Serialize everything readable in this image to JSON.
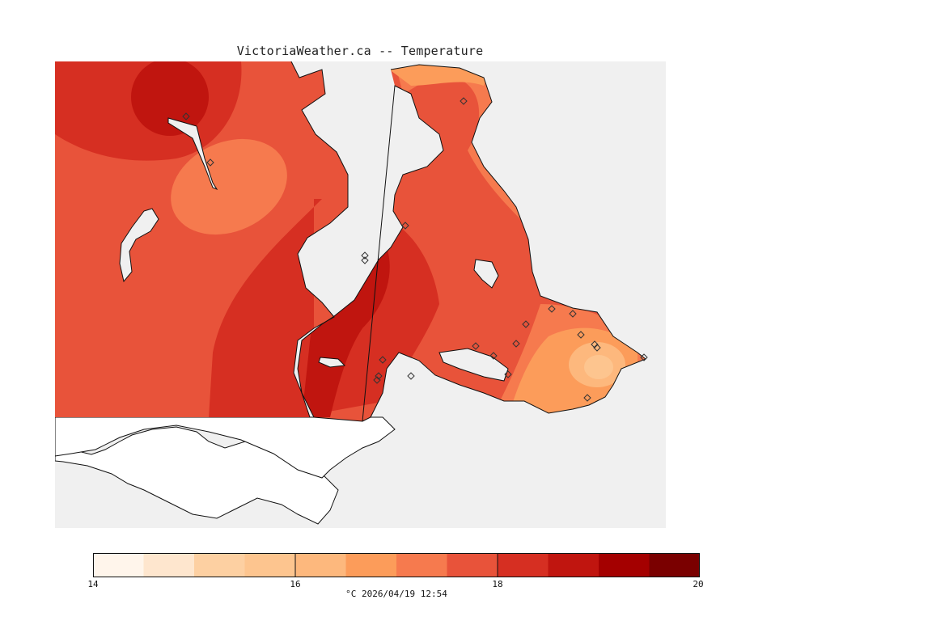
{
  "title": "VictoriaWeather.ca -- Temperature",
  "legend": {
    "colors": [
      "#fff5eb",
      "#fee6ce",
      "#fdd0a2",
      "#fdc58f",
      "#fdb87d",
      "#fc9c5a",
      "#f67a4e",
      "#e8533a",
      "#d62f22",
      "#c0150f",
      "#a40000",
      "#7a0000"
    ],
    "ticks": [
      "14",
      "16",
      "18",
      "20"
    ],
    "units_time": "°C  2026/04/19 12:54"
  },
  "map": {
    "water_color": "#f0f0f0",
    "land_outside_color": "#ffffff",
    "station_count": 22
  }
}
